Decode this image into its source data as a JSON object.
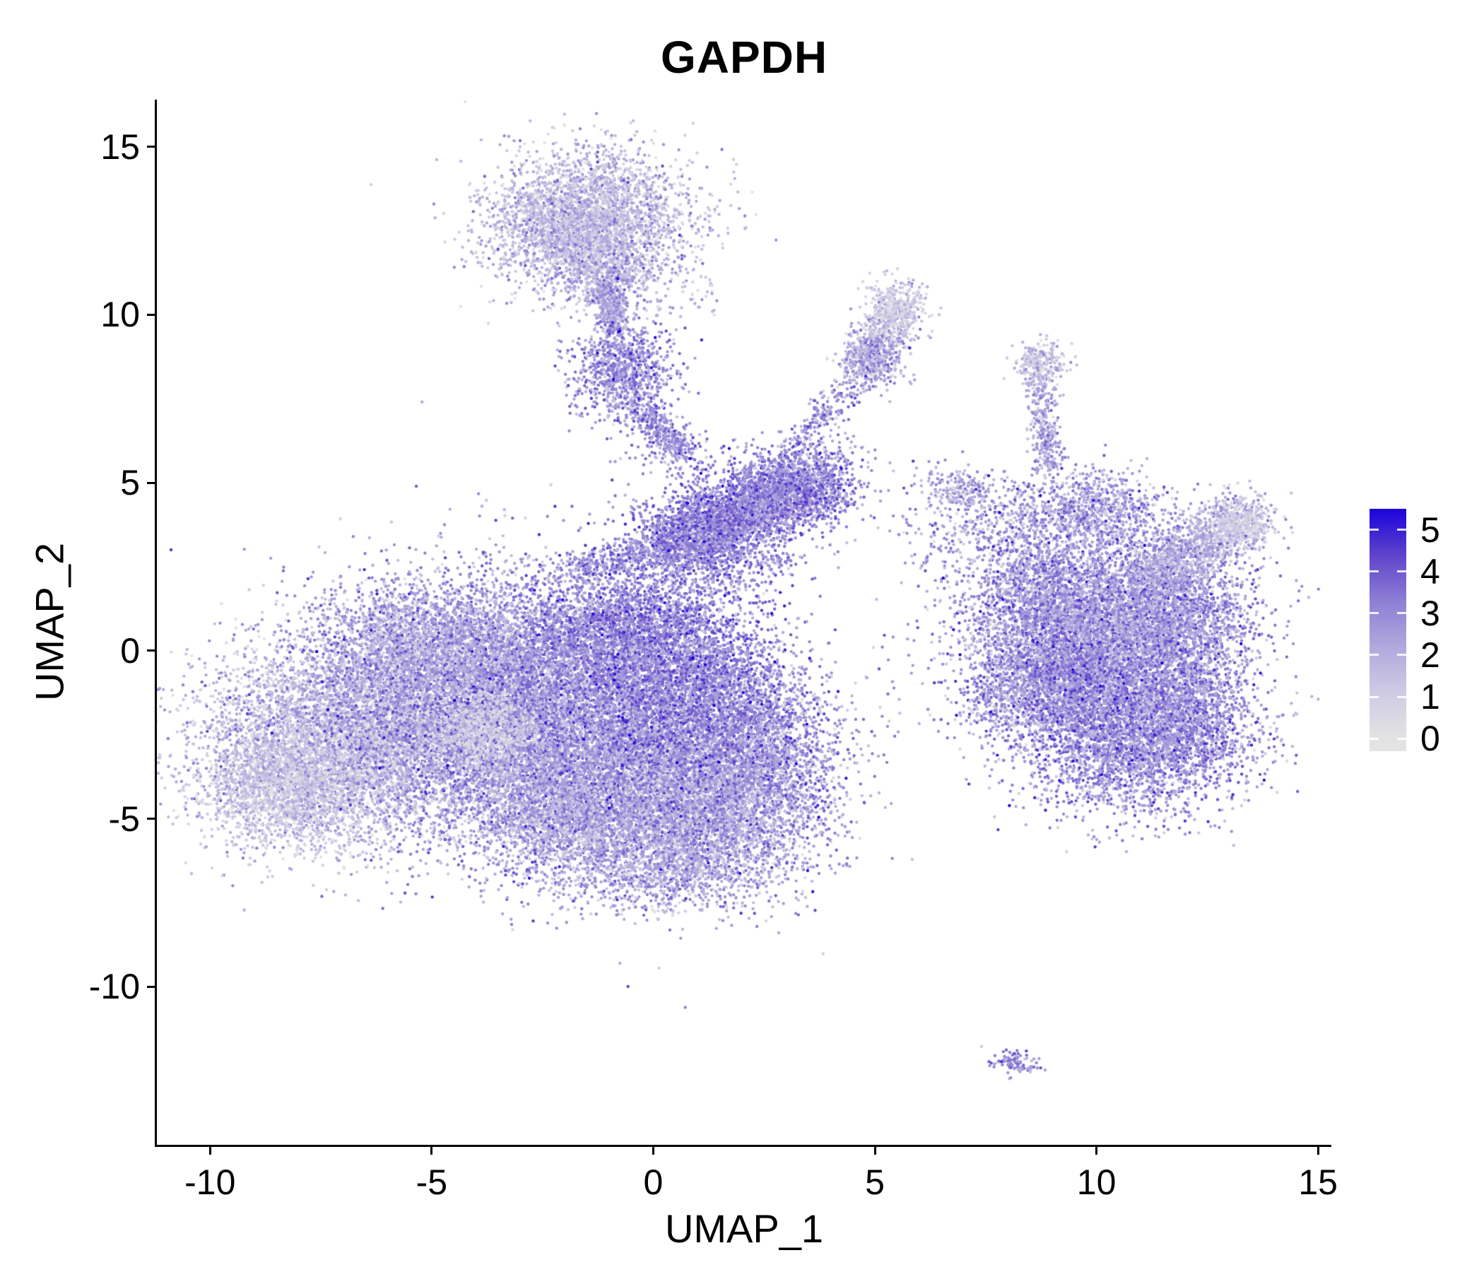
{
  "title": "GAPDH",
  "axes": {
    "x_label": "UMAP_1",
    "y_label": "UMAP_2",
    "x_ticks": [
      "-10",
      "-5",
      "0",
      "5",
      "10",
      "15"
    ],
    "y_ticks": [
      "15",
      "10",
      "5",
      "0",
      "-5",
      "-10"
    ]
  },
  "legend": {
    "ticks": [
      "5",
      "4",
      "3",
      "2",
      "1",
      "0"
    ]
  },
  "chart_data": {
    "type": "scatter",
    "title": "GAPDH",
    "xlabel": "UMAP_1",
    "ylabel": "UMAP_2",
    "xlim": [
      -11.2,
      15.3
    ],
    "ylim": [
      -14.7,
      16.4
    ],
    "x_ticks": [
      -10,
      -5,
      0,
      5,
      10,
      15
    ],
    "y_ticks": [
      15,
      10,
      5,
      0,
      -5,
      -10
    ],
    "grid": false,
    "legend_position": "right",
    "color_scale": {
      "label_values": [
        5,
        4,
        3,
        2,
        1,
        0
      ],
      "domain": [
        0,
        5.5
      ],
      "bar_range": [
        -0.3,
        5.5
      ],
      "stops": [
        [
          0,
          "#E3E3E3"
        ],
        [
          1.1,
          "#CFCBE4"
        ],
        [
          2.2,
          "#B1A8DC"
        ],
        [
          3.3,
          "#8D7ED4"
        ],
        [
          4.4,
          "#5F43CB"
        ],
        [
          5.5,
          "#1B03DC"
        ]
      ]
    },
    "point_radius": 2.2,
    "seed": 42,
    "clusters": [
      {
        "t": "g",
        "cx": -6.8,
        "cy": -2.6,
        "sx": 1.7,
        "sy": 1.5,
        "n": 5500,
        "v": 1.7,
        "s": 1.0
      },
      {
        "t": "g",
        "cx": -8.2,
        "cy": -4.0,
        "sx": 1.0,
        "sy": 0.9,
        "n": 1800,
        "v": 1.2,
        "s": 0.8
      },
      {
        "t": "g",
        "cx": -3.6,
        "cy": -1.2,
        "sx": 1.9,
        "sy": 1.7,
        "n": 7000,
        "v": 2.5,
        "s": 1.0
      },
      {
        "t": "g",
        "cx": -1.2,
        "cy": -3.2,
        "sx": 1.9,
        "sy": 1.6,
        "n": 6500,
        "v": 2.7,
        "s": 1.0
      },
      {
        "t": "g",
        "cx": 1.3,
        "cy": -4.6,
        "sx": 1.3,
        "sy": 1.1,
        "n": 2800,
        "v": 2.3,
        "s": 1.0
      },
      {
        "t": "g",
        "cx": -0.6,
        "cy": 0.6,
        "sx": 1.2,
        "sy": 0.9,
        "n": 2200,
        "v": 3.1,
        "s": 0.9
      },
      {
        "t": "g",
        "cx": 0.2,
        "cy": -6.2,
        "sx": 1.4,
        "sy": 0.8,
        "n": 1400,
        "v": 2.2,
        "s": 1.0
      },
      {
        "t": "g",
        "cx": -3.8,
        "cy": -2.4,
        "sx": 0.7,
        "sy": 0.55,
        "n": 700,
        "v": 0.9,
        "s": 0.7
      },
      {
        "t": "g",
        "cx": -5.2,
        "cy": 0.3,
        "sx": 1.2,
        "sy": 0.8,
        "n": 1500,
        "v": 2.3,
        "s": 1.0
      },
      {
        "t": "g",
        "cx": 2.3,
        "cy": -3.0,
        "sx": 1.0,
        "sy": 1.3,
        "n": 1800,
        "v": 2.6,
        "s": 1.0
      },
      {
        "t": "g",
        "cx": 0.8,
        "cy": -1.2,
        "sx": 1.2,
        "sy": 1.2,
        "n": 2500,
        "v": 3.1,
        "s": 1.0
      },
      {
        "t": "g",
        "cx": -2.2,
        "cy": -5.0,
        "sx": 1.0,
        "sy": 0.8,
        "n": 1200,
        "v": 2.0,
        "s": 1.0
      },
      {
        "t": "g",
        "cx": -1.4,
        "cy": 13.0,
        "sx": 1.15,
        "sy": 0.95,
        "n": 2600,
        "v": 1.5,
        "s": 0.95
      },
      {
        "t": "g",
        "cx": -2.0,
        "cy": 12.2,
        "sx": 0.8,
        "sy": 0.8,
        "n": 900,
        "v": 1.7,
        "s": 0.95
      },
      {
        "t": "g",
        "cx": -0.9,
        "cy": 11.3,
        "sx": 0.6,
        "sy": 0.6,
        "n": 500,
        "v": 1.9,
        "s": 0.9
      },
      {
        "t": "s",
        "x1": -1.1,
        "y1": 10.8,
        "x2": -0.85,
        "y2": 9.5,
        "w": 0.18,
        "n": 350,
        "v": 2.3,
        "s": 0.8
      },
      {
        "t": "g",
        "cx": -0.7,
        "cy": 8.35,
        "sx": 0.55,
        "sy": 0.7,
        "n": 900,
        "v": 2.9,
        "s": 0.9
      },
      {
        "t": "s",
        "x1": -0.4,
        "y1": 7.4,
        "x2": 0.75,
        "y2": 5.8,
        "w": 0.2,
        "n": 320,
        "v": 2.8,
        "s": 0.8
      },
      {
        "t": "g",
        "cx": 0.3,
        "cy": 6.0,
        "sx": 0.5,
        "sy": 0.5,
        "n": 120,
        "v": 2.8,
        "s": 0.9
      },
      {
        "t": "s",
        "x1": 0.5,
        "y1": 3.3,
        "x2": 3.9,
        "y2": 5.1,
        "w": 0.5,
        "n": 2600,
        "v": 3.1,
        "s": 0.9
      },
      {
        "t": "g",
        "cx": 1.0,
        "cy": 3.4,
        "sx": 0.8,
        "sy": 0.7,
        "n": 900,
        "v": 3.2,
        "s": 0.9
      },
      {
        "t": "g",
        "cx": 2.8,
        "cy": 4.8,
        "sx": 0.7,
        "sy": 0.6,
        "n": 800,
        "v": 3.0,
        "s": 0.9
      },
      {
        "t": "s",
        "x1": -1.9,
        "y1": 2.4,
        "x2": 0.4,
        "y2": 3.1,
        "w": 0.25,
        "n": 350,
        "v": 3.0,
        "s": 0.8
      },
      {
        "t": "g",
        "cx": 1.6,
        "cy": 2.6,
        "sx": 0.9,
        "sy": 0.8,
        "n": 450,
        "v": 2.9,
        "s": 1.0
      },
      {
        "t": "s",
        "x1": 2.9,
        "y1": 5.6,
        "x2": 4.4,
        "y2": 7.9,
        "w": 0.22,
        "n": 230,
        "v": 2.7,
        "s": 0.9
      },
      {
        "t": "s",
        "x1": 4.7,
        "y1": 8.3,
        "x2": 5.6,
        "y2": 10.4,
        "w": 0.3,
        "n": 650,
        "v": 1.6,
        "s": 1.0
      },
      {
        "t": "g",
        "cx": 5.5,
        "cy": 10.2,
        "sx": 0.35,
        "sy": 0.45,
        "n": 250,
        "v": 0.9,
        "s": 0.6
      },
      {
        "t": "g",
        "cx": 4.9,
        "cy": 8.6,
        "sx": 0.35,
        "sy": 0.4,
        "n": 250,
        "v": 2.4,
        "s": 0.9
      },
      {
        "t": "g",
        "cx": 5.0,
        "cy": 4.6,
        "sx": 1.2,
        "sy": 0.9,
        "n": 70,
        "v": 2.6,
        "s": 0.9
      },
      {
        "t": "g",
        "cx": 6.6,
        "cy": 3.3,
        "sx": 0.5,
        "sy": 0.5,
        "n": 60,
        "v": 2.4,
        "s": 0.9
      },
      {
        "t": "g",
        "cx": 6.3,
        "cy": 5.2,
        "sx": 0.25,
        "sy": 0.25,
        "n": 18,
        "v": 2.3,
        "s": 0.8
      },
      {
        "t": "g",
        "cx": 10.0,
        "cy": 0.6,
        "sx": 1.5,
        "sy": 1.5,
        "n": 5200,
        "v": 2.7,
        "s": 1.0
      },
      {
        "t": "g",
        "cx": 10.9,
        "cy": -2.6,
        "sx": 1.3,
        "sy": 1.1,
        "n": 3200,
        "v": 2.8,
        "s": 1.0
      },
      {
        "t": "g",
        "cx": 9.4,
        "cy": -0.9,
        "sx": 0.9,
        "sy": 0.9,
        "n": 1500,
        "v": 2.9,
        "s": 1.0
      },
      {
        "t": "g",
        "cx": 11.6,
        "cy": 0.9,
        "sx": 0.9,
        "sy": 1.0,
        "n": 1500,
        "v": 2.6,
        "s": 1.0
      },
      {
        "t": "g",
        "cx": 12.2,
        "cy": -1.8,
        "sx": 0.6,
        "sy": 0.8,
        "n": 600,
        "v": 2.7,
        "s": 1.0
      },
      {
        "t": "s",
        "x1": 11.2,
        "y1": 2.2,
        "x2": 13.4,
        "y2": 4.0,
        "w": 0.45,
        "n": 1100,
        "v": 2.0,
        "s": 0.9
      },
      {
        "t": "g",
        "cx": 13.2,
        "cy": 3.8,
        "sx": 0.4,
        "sy": 0.35,
        "n": 280,
        "v": 0.9,
        "s": 0.6
      },
      {
        "t": "s",
        "x1": 8.95,
        "y1": 5.4,
        "x2": 8.7,
        "y2": 8.2,
        "w": 0.18,
        "n": 330,
        "v": 2.2,
        "s": 0.9
      },
      {
        "t": "g",
        "cx": 8.72,
        "cy": 8.55,
        "sx": 0.3,
        "sy": 0.3,
        "n": 240,
        "v": 1.4,
        "s": 0.8
      },
      {
        "t": "g",
        "cx": 6.9,
        "cy": 4.8,
        "sx": 0.3,
        "sy": 0.25,
        "n": 160,
        "v": 2.0,
        "s": 0.9
      },
      {
        "t": "g",
        "cx": 7.8,
        "cy": 3.9,
        "sx": 0.8,
        "sy": 0.7,
        "n": 280,
        "v": 2.5,
        "s": 1.0
      },
      {
        "t": "g",
        "cx": 9.9,
        "cy": 4.2,
        "sx": 0.8,
        "sy": 0.6,
        "n": 800,
        "v": 2.4,
        "s": 1.0
      },
      {
        "t": "g",
        "cx": 8.6,
        "cy": 1.9,
        "sx": 0.7,
        "sy": 0.9,
        "n": 700,
        "v": 2.7,
        "s": 1.0
      },
      {
        "t": "g",
        "cx": 7.8,
        "cy": -1.2,
        "sx": 0.5,
        "sy": 0.8,
        "n": 250,
        "v": 2.4,
        "s": 1.0
      },
      {
        "t": "g",
        "cx": 8.15,
        "cy": -12.25,
        "sx": 0.3,
        "sy": 0.2,
        "n": 90,
        "v": 2.8,
        "s": 0.8
      },
      {
        "t": "g",
        "cx": 0.9,
        "cy": 10.7,
        "sx": 0.3,
        "sy": 0.5,
        "n": 35,
        "v": 1.6,
        "s": 0.8
      },
      {
        "t": "g",
        "cx": 4.4,
        "cy": 6.1,
        "sx": 0.3,
        "sy": 0.3,
        "n": 25,
        "v": 2.6,
        "s": 0.8
      }
    ]
  }
}
